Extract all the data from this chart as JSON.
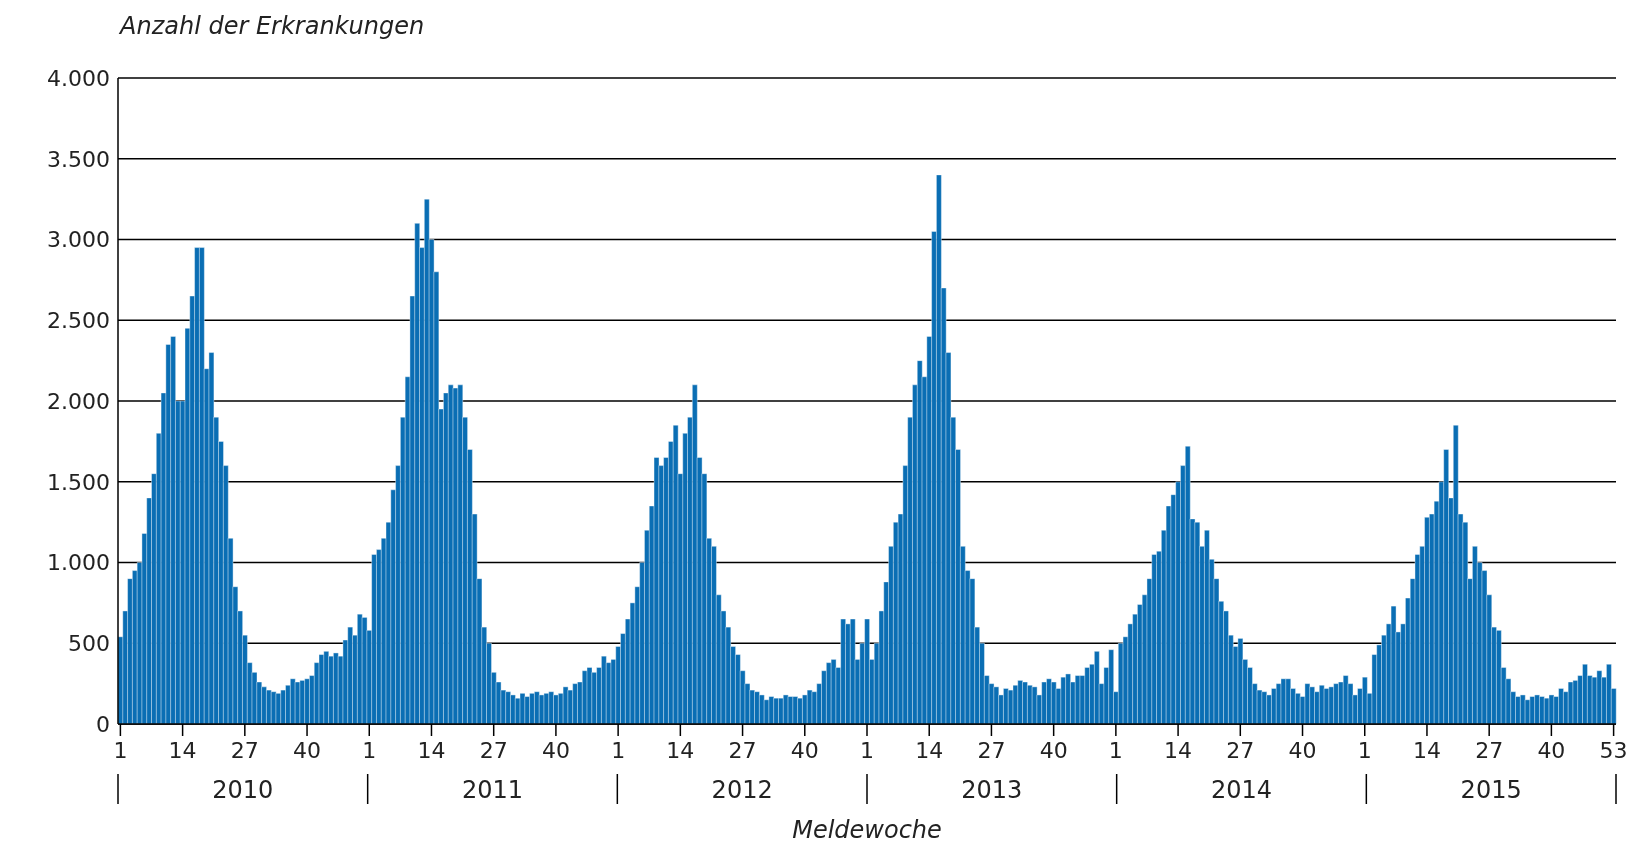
{
  "chart_data": {
    "type": "bar",
    "ylabel": "Anzahl der Erkrankungen",
    "xlabel": "Meldewoche",
    "annotations": [
      "2010",
      "2011",
      "2012",
      "2013",
      "2014",
      "2015"
    ],
    "categories": [
      "1",
      null,
      null,
      null,
      null,
      null,
      null,
      null,
      null,
      null,
      null,
      null,
      null,
      "14",
      null,
      null,
      null,
      null,
      null,
      null,
      null,
      null,
      null,
      null,
      null,
      null,
      "27",
      null,
      null,
      null,
      null,
      null,
      null,
      null,
      null,
      null,
      null,
      null,
      null,
      "40",
      null,
      null,
      null,
      null,
      null,
      null,
      null,
      null,
      null,
      null,
      null,
      null,
      "1",
      null,
      null,
      null,
      null,
      null,
      null,
      null,
      null,
      null,
      null,
      null,
      null,
      "14",
      null,
      null,
      null,
      null,
      null,
      null,
      null,
      null,
      null,
      null,
      null,
      null,
      "27",
      null,
      null,
      null,
      null,
      null,
      null,
      null,
      null,
      null,
      null,
      null,
      null,
      "40",
      null,
      null,
      null,
      null,
      null,
      null,
      null,
      null,
      null,
      null,
      null,
      null,
      "1",
      null,
      null,
      null,
      null,
      null,
      null,
      null,
      null,
      null,
      null,
      null,
      null,
      "14",
      null,
      null,
      null,
      null,
      null,
      null,
      null,
      null,
      null,
      null,
      null,
      null,
      "27",
      null,
      null,
      null,
      null,
      null,
      null,
      null,
      null,
      null,
      null,
      null,
      null,
      "40",
      null,
      null,
      null,
      null,
      null,
      null,
      null,
      null,
      null,
      null,
      null,
      null,
      "1",
      null,
      null,
      null,
      null,
      null,
      null,
      null,
      null,
      null,
      null,
      null,
      null,
      "14",
      null,
      null,
      null,
      null,
      null,
      null,
      null,
      null,
      null,
      null,
      null,
      null,
      "27",
      null,
      null,
      null,
      null,
      null,
      null,
      null,
      null,
      null,
      null,
      null,
      null,
      "40",
      null,
      null,
      null,
      null,
      null,
      null,
      null,
      null,
      null,
      null,
      null,
      null,
      "1",
      null,
      null,
      null,
      null,
      null,
      null,
      null,
      null,
      null,
      null,
      null,
      null,
      "14",
      null,
      null,
      null,
      null,
      null,
      null,
      null,
      null,
      null,
      null,
      null,
      null,
      "27",
      null,
      null,
      null,
      null,
      null,
      null,
      null,
      null,
      null,
      null,
      null,
      null,
      "40",
      null,
      null,
      null,
      null,
      null,
      null,
      null,
      null,
      null,
      null,
      null,
      null,
      "1",
      null,
      null,
      null,
      null,
      null,
      null,
      null,
      null,
      null,
      null,
      null,
      null,
      "14",
      null,
      null,
      null,
      null,
      null,
      null,
      null,
      null,
      null,
      null,
      null,
      null,
      "27",
      null,
      null,
      null,
      null,
      null,
      null,
      null,
      null,
      null,
      null,
      null,
      null,
      "40",
      null,
      null,
      null,
      null,
      null,
      null,
      null,
      null,
      null,
      null,
      null,
      null,
      "53"
    ],
    "values": [
      540,
      700,
      900,
      950,
      1000,
      1180,
      1400,
      1550,
      1800,
      2050,
      2350,
      2400,
      2000,
      2000,
      2450,
      2650,
      2950,
      2950,
      2200,
      2300,
      1900,
      1750,
      1600,
      1150,
      850,
      700,
      550,
      380,
      320,
      260,
      230,
      210,
      200,
      190,
      210,
      240,
      280,
      260,
      270,
      280,
      300,
      380,
      430,
      450,
      420,
      440,
      420,
      520,
      600,
      550,
      680,
      660,
      580,
      1050,
      1080,
      1150,
      1250,
      1450,
      1600,
      1900,
      2150,
      2650,
      3100,
      2950,
      3250,
      3000,
      2800,
      1950,
      2050,
      2100,
      2080,
      2100,
      1900,
      1700,
      1300,
      900,
      600,
      500,
      320,
      260,
      210,
      200,
      180,
      160,
      190,
      170,
      190,
      200,
      180,
      190,
      200,
      180,
      190,
      230,
      210,
      250,
      260,
      330,
      350,
      320,
      350,
      420,
      380,
      400,
      480,
      560,
      650,
      750,
      850,
      1000,
      1200,
      1350,
      1650,
      1600,
      1650,
      1750,
      1850,
      1550,
      1800,
      1900,
      2100,
      1650,
      1550,
      1150,
      1100,
      800,
      700,
      600,
      480,
      430,
      330,
      250,
      210,
      200,
      180,
      150,
      170,
      160,
      160,
      180,
      170,
      170,
      160,
      180,
      210,
      200,
      250,
      330,
      380,
      400,
      350,
      650,
      620,
      650,
      400,
      500,
      650,
      400,
      500,
      700,
      880,
      1100,
      1250,
      1300,
      1600,
      1900,
      2100,
      2250,
      2150,
      2400,
      3050,
      3400,
      2700,
      2300,
      1900,
      1700,
      1100,
      950,
      900,
      600,
      500,
      300,
      250,
      230,
      180,
      220,
      210,
      240,
      270,
      260,
      240,
      230,
      180,
      260,
      280,
      260,
      220,
      290,
      310,
      260,
      300,
      300,
      350,
      370,
      450,
      250,
      350,
      460,
      200,
      500,
      540,
      620,
      680,
      740,
      800,
      900,
      1050,
      1070,
      1200,
      1350,
      1420,
      1500,
      1600,
      1720,
      1270,
      1250,
      1100,
      1200,
      1020,
      900,
      760,
      700,
      550,
      480,
      530,
      400,
      350,
      250,
      210,
      200,
      180,
      220,
      250,
      280,
      280,
      220,
      190,
      170,
      250,
      230,
      200,
      240,
      220,
      230,
      250,
      260,
      300,
      250,
      180,
      220,
      290,
      190,
      430,
      490,
      550,
      620,
      730,
      570,
      620,
      780,
      900,
      1050,
      1100,
      1280,
      1300,
      1380,
      1500,
      1700,
      1400,
      1850,
      1300,
      1250,
      900,
      1100,
      1000,
      950,
      800,
      600,
      580,
      350,
      280,
      200,
      170,
      180,
      150,
      170,
      180,
      170,
      160,
      180,
      170,
      220,
      200,
      260,
      270,
      300,
      370,
      300,
      290,
      330,
      290,
      370,
      220
    ],
    "color": "#0a6eb4",
    "ylim": [
      0,
      4000
    ],
    "yticks": [
      0,
      500,
      {
        "value": 1000,
        "label": "1.000"
      },
      {
        "value": 1500,
        "label": "1.500"
      },
      {
        "value": 2000,
        "label": "2.000"
      },
      {
        "value": 2500,
        "label": "2.500"
      },
      {
        "value": 3000,
        "label": "3.000"
      },
      {
        "value": 3500,
        "label": "3.500"
      },
      {
        "value": 4000,
        "label": "4.000"
      }
    ],
    "grid": "y"
  }
}
